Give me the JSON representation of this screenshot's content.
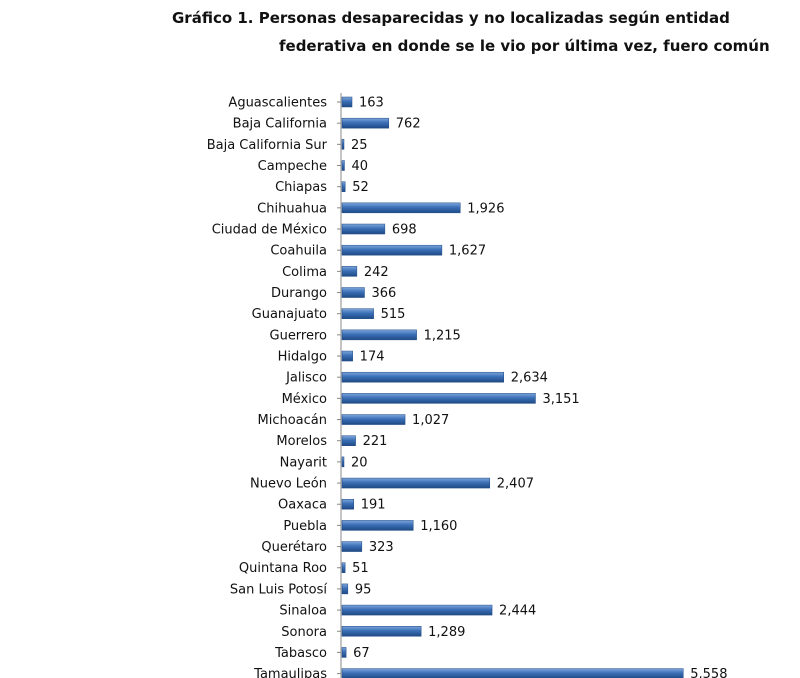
{
  "title_line1": "Gráfico 1. Personas desaparecidas y no localizadas según entidad",
  "title_line2": "federativa en donde se le vio por última vez, fuero común",
  "chart_data": {
    "type": "bar",
    "orientation": "horizontal",
    "title": "Gráfico 1. Personas desaparecidas y no localizadas según entidad federativa en donde se le vio por última vez, fuero común",
    "categories": [
      "Aguascalientes",
      "Baja California",
      "Baja California Sur",
      "Campeche",
      "Chiapas",
      "Chihuahua",
      "Ciudad de México",
      "Coahuila",
      "Colima",
      "Durango",
      "Guanajuato",
      "Guerrero",
      "Hidalgo",
      "Jalisco",
      "México",
      "Michoacán",
      "Morelos",
      "Nayarit",
      "Nuevo León",
      "Oaxaca",
      "Puebla",
      "Querétaro",
      "Quintana Roo",
      "San Luis Potosí",
      "Sinaloa",
      "Sonora",
      "Tabasco",
      "Tamaulipas"
    ],
    "values": [
      163,
      762,
      25,
      40,
      52,
      1926,
      698,
      1627,
      242,
      366,
      515,
      1215,
      174,
      2634,
      3151,
      1027,
      221,
      20,
      2407,
      191,
      1160,
      323,
      51,
      95,
      2444,
      1289,
      67,
      5558
    ],
    "value_labels": [
      "163",
      "762",
      "25",
      "40",
      "52",
      "1,926",
      "698",
      "1,627",
      "242",
      "366",
      "515",
      "1,215",
      "174",
      "2,634",
      "3,151",
      "1,027",
      "221",
      "20",
      "2,407",
      "191",
      "1,160",
      "323",
      "51",
      "95",
      "2,444",
      "1,289",
      "67",
      "5,558"
    ],
    "bar_color": "#3b6fb6",
    "grid": false,
    "legend": "none"
  }
}
